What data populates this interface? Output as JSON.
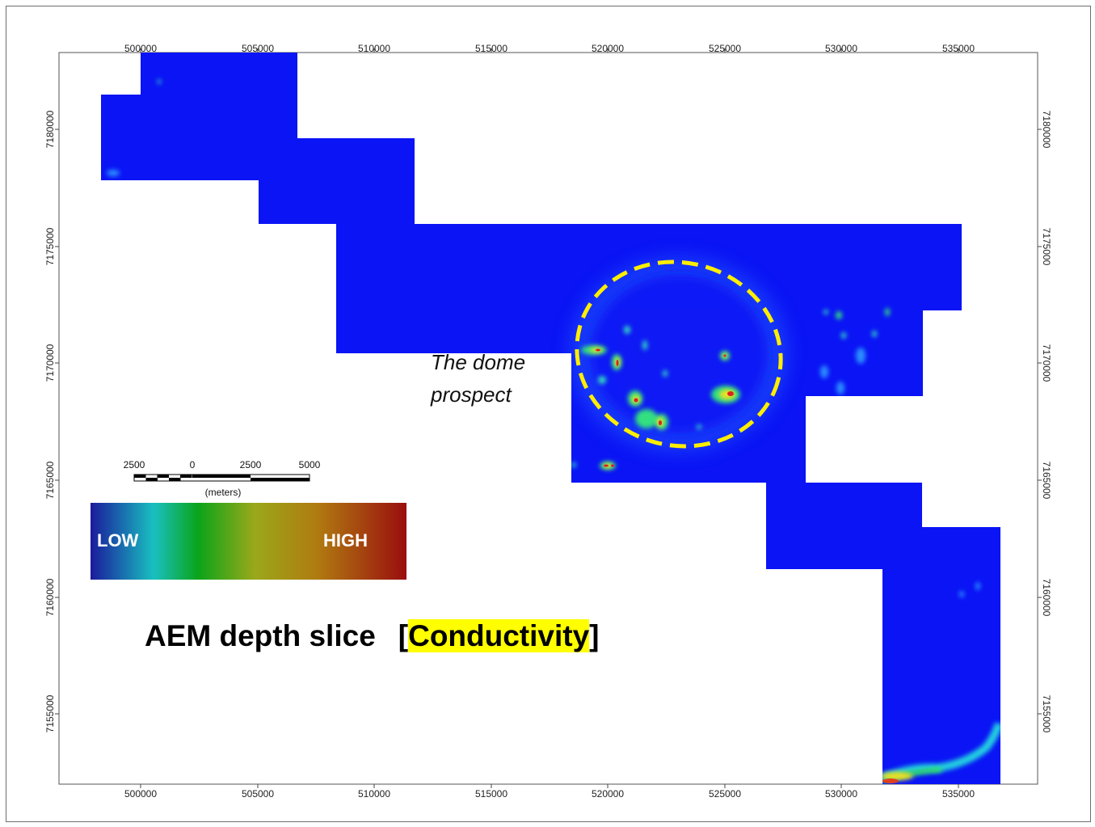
{
  "axes": {
    "x_ticks": [
      "500000",
      "505000",
      "510000",
      "515000",
      "520000",
      "525000",
      "530000",
      "535000"
    ],
    "y_ticks": [
      "7180000",
      "7175000",
      "7170000",
      "7165000",
      "7160000",
      "7155000"
    ]
  },
  "scale_bar": {
    "labels": [
      "2500",
      "0",
      "2500",
      "5000"
    ],
    "units": "(meters)"
  },
  "legend": {
    "low_label": "LOW",
    "high_label": "HIGH",
    "colors": [
      "#1a1a9c",
      "#19c0c0",
      "#0aa41a",
      "#9aa81a",
      "#b07a10",
      "#990e0e"
    ]
  },
  "annotation": {
    "prospect_line1": "The dome",
    "prospect_line2": "prospect",
    "ellipse_color": "#ffee00"
  },
  "title": {
    "main": "AEM depth slice",
    "open_bracket": "[",
    "highlight": "Conductivity",
    "close_bracket": "]"
  },
  "colors": {
    "survey_fill": "#0a14f5",
    "highlight": "#ffff00"
  }
}
